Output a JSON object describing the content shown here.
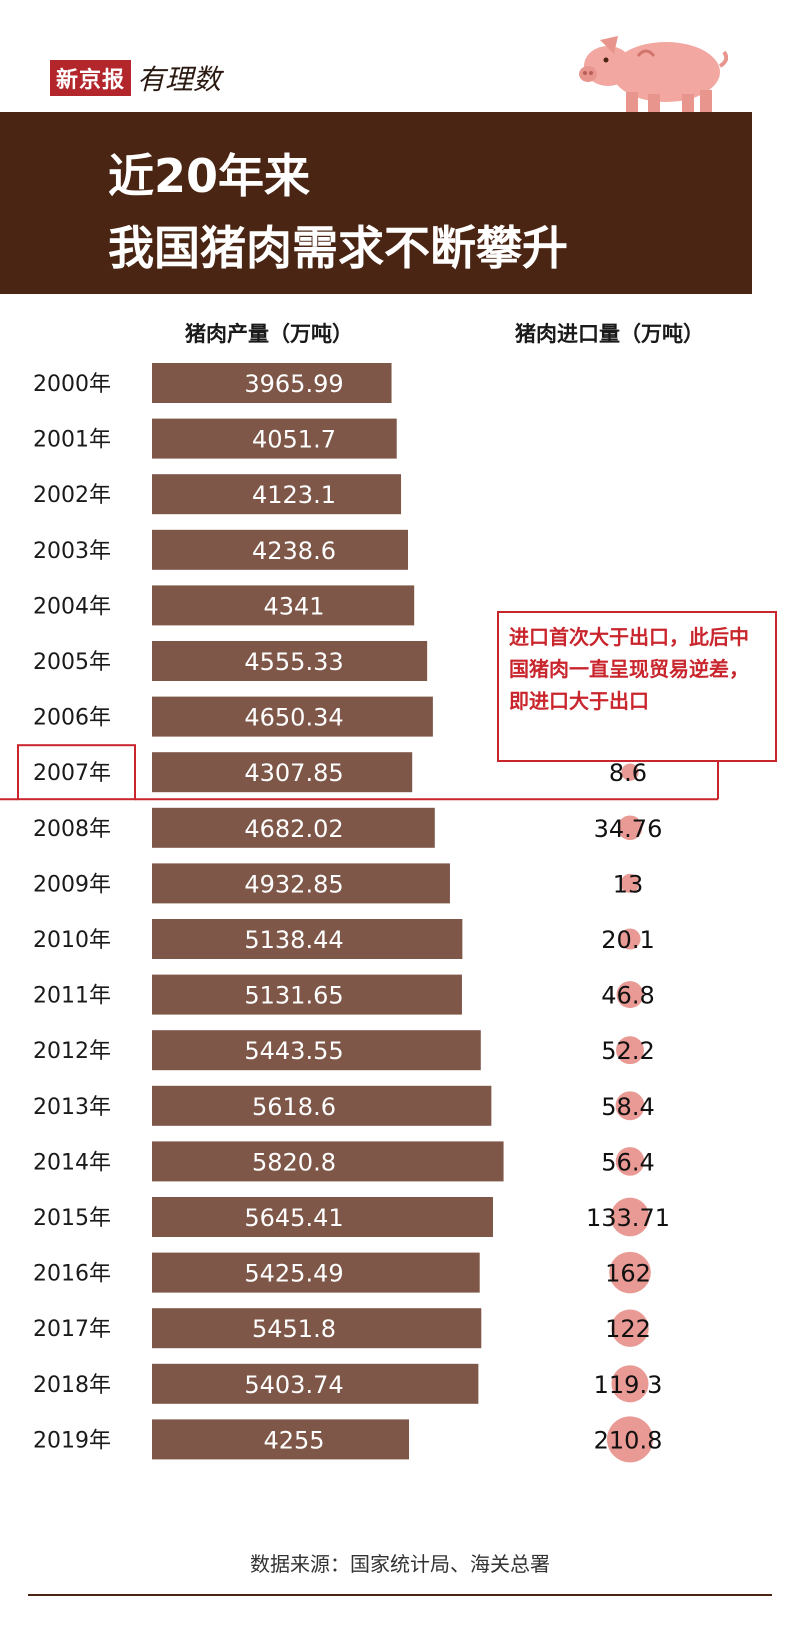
{
  "brand": {
    "name": "新京报",
    "sub": "有理数"
  },
  "title": {
    "line1": "近20年来",
    "line2": "我国猪肉需求不断攀升"
  },
  "columns": {
    "production": "猪肉产量（万吨）",
    "imports": "猪肉进口量（万吨）"
  },
  "annotation": {
    "text": "进口首次大于出口，此后中国猪肉一直呈现贸易逆差，即进口大于出口",
    "highlight_year": "2007年"
  },
  "source": "数据来源：国家统计局、海关总署",
  "colors": {
    "bar": "#7e5748",
    "header": "#4a2513",
    "accent": "#c9252c",
    "bubble": "#e99a94"
  },
  "chart_data": {
    "type": "bar",
    "categories": [
      "2000年",
      "2001年",
      "2002年",
      "2003年",
      "2004年",
      "2005年",
      "2006年",
      "2007年",
      "2008年",
      "2009年",
      "2010年",
      "2011年",
      "2012年",
      "2013年",
      "2014年",
      "2015年",
      "2016年",
      "2017年",
      "2018年",
      "2019年"
    ],
    "series": [
      {
        "name": "猪肉产量（万吨）",
        "values": [
          3965.99,
          4051.7,
          4123.1,
          4238.6,
          4341,
          4555.33,
          4650.34,
          4307.85,
          4682.02,
          4932.85,
          5138.44,
          5131.65,
          5443.55,
          5618.6,
          5820.8,
          5645.41,
          5425.49,
          5451.8,
          5403.74,
          4255
        ],
        "labels": [
          "3965.99",
          "4051.7",
          "4123.1",
          "4238.6",
          "4341",
          "4555.33",
          "4650.34",
          "4307.85",
          "4682.02",
          "4932.85",
          "5138.44",
          "5131.65",
          "5443.55",
          "5618.6",
          "5820.8",
          "5645.41",
          "5425.49",
          "5451.8",
          "5403.74",
          "4255"
        ]
      },
      {
        "name": "猪肉进口量（万吨）",
        "values": [
          null,
          null,
          null,
          null,
          null,
          null,
          null,
          8.6,
          34.76,
          13,
          20.1,
          46.8,
          52.2,
          58.4,
          56.4,
          133.71,
          162,
          122,
          119.3,
          210.8
        ],
        "labels": [
          "",
          "",
          "",
          "",
          "",
          "",
          "",
          "8.6",
          "34.76",
          "13",
          "20.1",
          "46.8",
          "52.2",
          "58.4",
          "56.4",
          "133.71",
          "162",
          "122",
          "119.3",
          "210.8"
        ]
      }
    ],
    "xlabel": "",
    "ylabel": ""
  }
}
